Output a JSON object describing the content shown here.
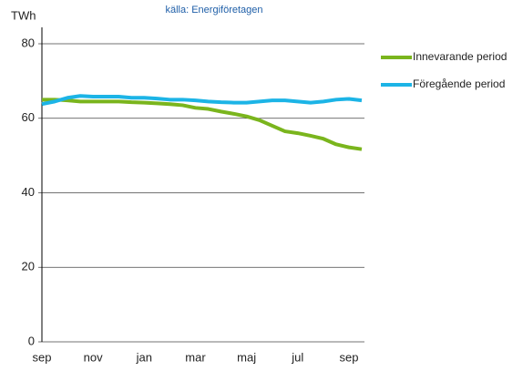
{
  "chart_data": {
    "type": "line",
    "title": "källa: Energiföretagen",
    "y_label": "TWh",
    "categories": [
      "sep",
      null,
      null,
      null,
      "nov",
      null,
      null,
      null,
      "jan",
      null,
      null,
      null,
      "mar",
      null,
      null,
      null,
      "maj",
      null,
      null,
      null,
      "jul",
      null,
      null,
      null,
      "sep",
      null
    ],
    "series": [
      {
        "name": "Innevarande period",
        "color": "#7ab51d",
        "values": [
          65,
          65,
          64.8,
          64.5,
          64.5,
          64.5,
          64.5,
          64.3,
          64.2,
          64,
          63.8,
          63.5,
          62.8,
          62.5,
          61.8,
          61.2,
          60.5,
          59.5,
          58,
          56.5,
          56,
          55.3,
          54.5,
          53,
          52.2,
          51.7
        ]
      },
      {
        "name": "Föregående period",
        "color": "#1cb4e6",
        "values": [
          63.8,
          64.5,
          65.5,
          66,
          65.8,
          65.8,
          65.8,
          65.5,
          65.5,
          65.3,
          65,
          65,
          64.8,
          64.5,
          64.3,
          64.2,
          64.2,
          64.5,
          64.8,
          64.8,
          64.5,
          64.2,
          64.5,
          65,
          65.2,
          64.8
        ]
      }
    ],
    "ylim": [
      0,
      80
    ],
    "yticks": [
      0,
      20,
      40,
      60,
      80
    ],
    "grid": true,
    "legend": "right"
  }
}
